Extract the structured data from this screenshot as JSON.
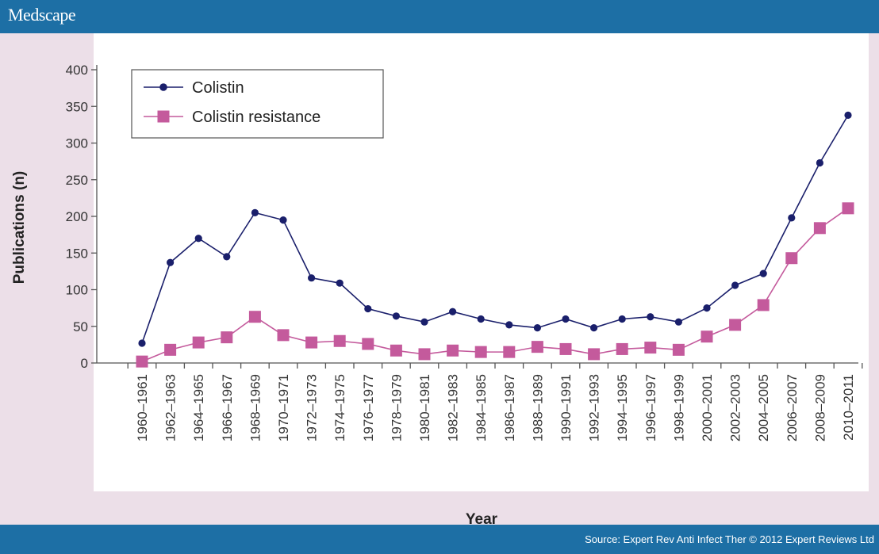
{
  "header": {
    "brand": "Medscape"
  },
  "footer": {
    "source": "Source: Expert Rev Anti Infect Ther © 2012 Expert Reviews Ltd"
  },
  "colors": {
    "header_bg": "#1d6fa5",
    "page_bg": "#ecdfe8",
    "plot_bg": "#ffffff",
    "colistin": "#1a1f6b",
    "resistance": "#c45a9c"
  },
  "chart_data": {
    "type": "line",
    "title": "",
    "xlabel": "Year",
    "ylabel": "Publications (n)",
    "ylim": [
      0,
      400
    ],
    "yticks": [
      0,
      50,
      100,
      150,
      200,
      250,
      300,
      350,
      400
    ],
    "grid": false,
    "legend_position": "top-left",
    "categories": [
      "1960–1961",
      "1962–1963",
      "1964–1965",
      "1966–1967",
      "1968–1969",
      "1970–1971",
      "1972–1973",
      "1974–1975",
      "1976–1977",
      "1978–1979",
      "1980–1981",
      "1982–1983",
      "1984–1985",
      "1986–1987",
      "1988–1989",
      "1990–1991",
      "1992–1993",
      "1994–1995",
      "1996–1997",
      "1998–1999",
      "2000–2001",
      "2002–2003",
      "2004–2005",
      "2006–2007",
      "2008–2009",
      "2010–2011"
    ],
    "series": [
      {
        "name": "Colistin",
        "marker": "circle",
        "color": "#1a1f6b",
        "values": [
          27,
          137,
          170,
          145,
          205,
          195,
          116,
          109,
          74,
          64,
          56,
          70,
          60,
          52,
          48,
          60,
          48,
          60,
          63,
          56,
          75,
          106,
          122,
          198,
          273,
          338
        ]
      },
      {
        "name": "Colistin resistance",
        "marker": "square",
        "color": "#c45a9c",
        "values": [
          2,
          18,
          28,
          35,
          63,
          38,
          28,
          30,
          26,
          17,
          12,
          17,
          15,
          15,
          22,
          19,
          12,
          19,
          21,
          18,
          36,
          52,
          79,
          143,
          184,
          211
        ]
      }
    ]
  }
}
